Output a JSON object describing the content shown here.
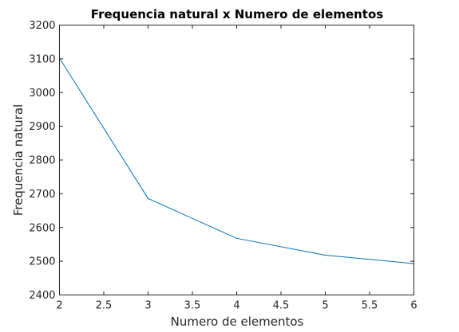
{
  "chart_data": {
    "type": "line",
    "title": "Frequencia natural x Numero de elementos",
    "xlabel": "Numero de elementos",
    "ylabel": "Frequencia natural",
    "xlim": [
      2,
      6
    ],
    "ylim": [
      2400,
      3200
    ],
    "xticks": [
      2,
      2.5,
      3,
      3.5,
      4,
      4.5,
      5,
      5.5,
      6
    ],
    "xtick_labels": [
      "2",
      "2.5",
      "3",
      "3.5",
      "4",
      "4.5",
      "5",
      "5.5",
      "6"
    ],
    "yticks": [
      2400,
      2500,
      2600,
      2700,
      2800,
      2900,
      3000,
      3100,
      3200
    ],
    "ytick_labels": [
      "2400",
      "2500",
      "2600",
      "2700",
      "2800",
      "2900",
      "3000",
      "3100",
      "3200"
    ],
    "grid": false,
    "line_color": "#0072BD",
    "series": [
      {
        "x": [
          2,
          3,
          4,
          5,
          6
        ],
        "y": [
          3102,
          2686,
          2568,
          2518,
          2493
        ]
      }
    ]
  }
}
